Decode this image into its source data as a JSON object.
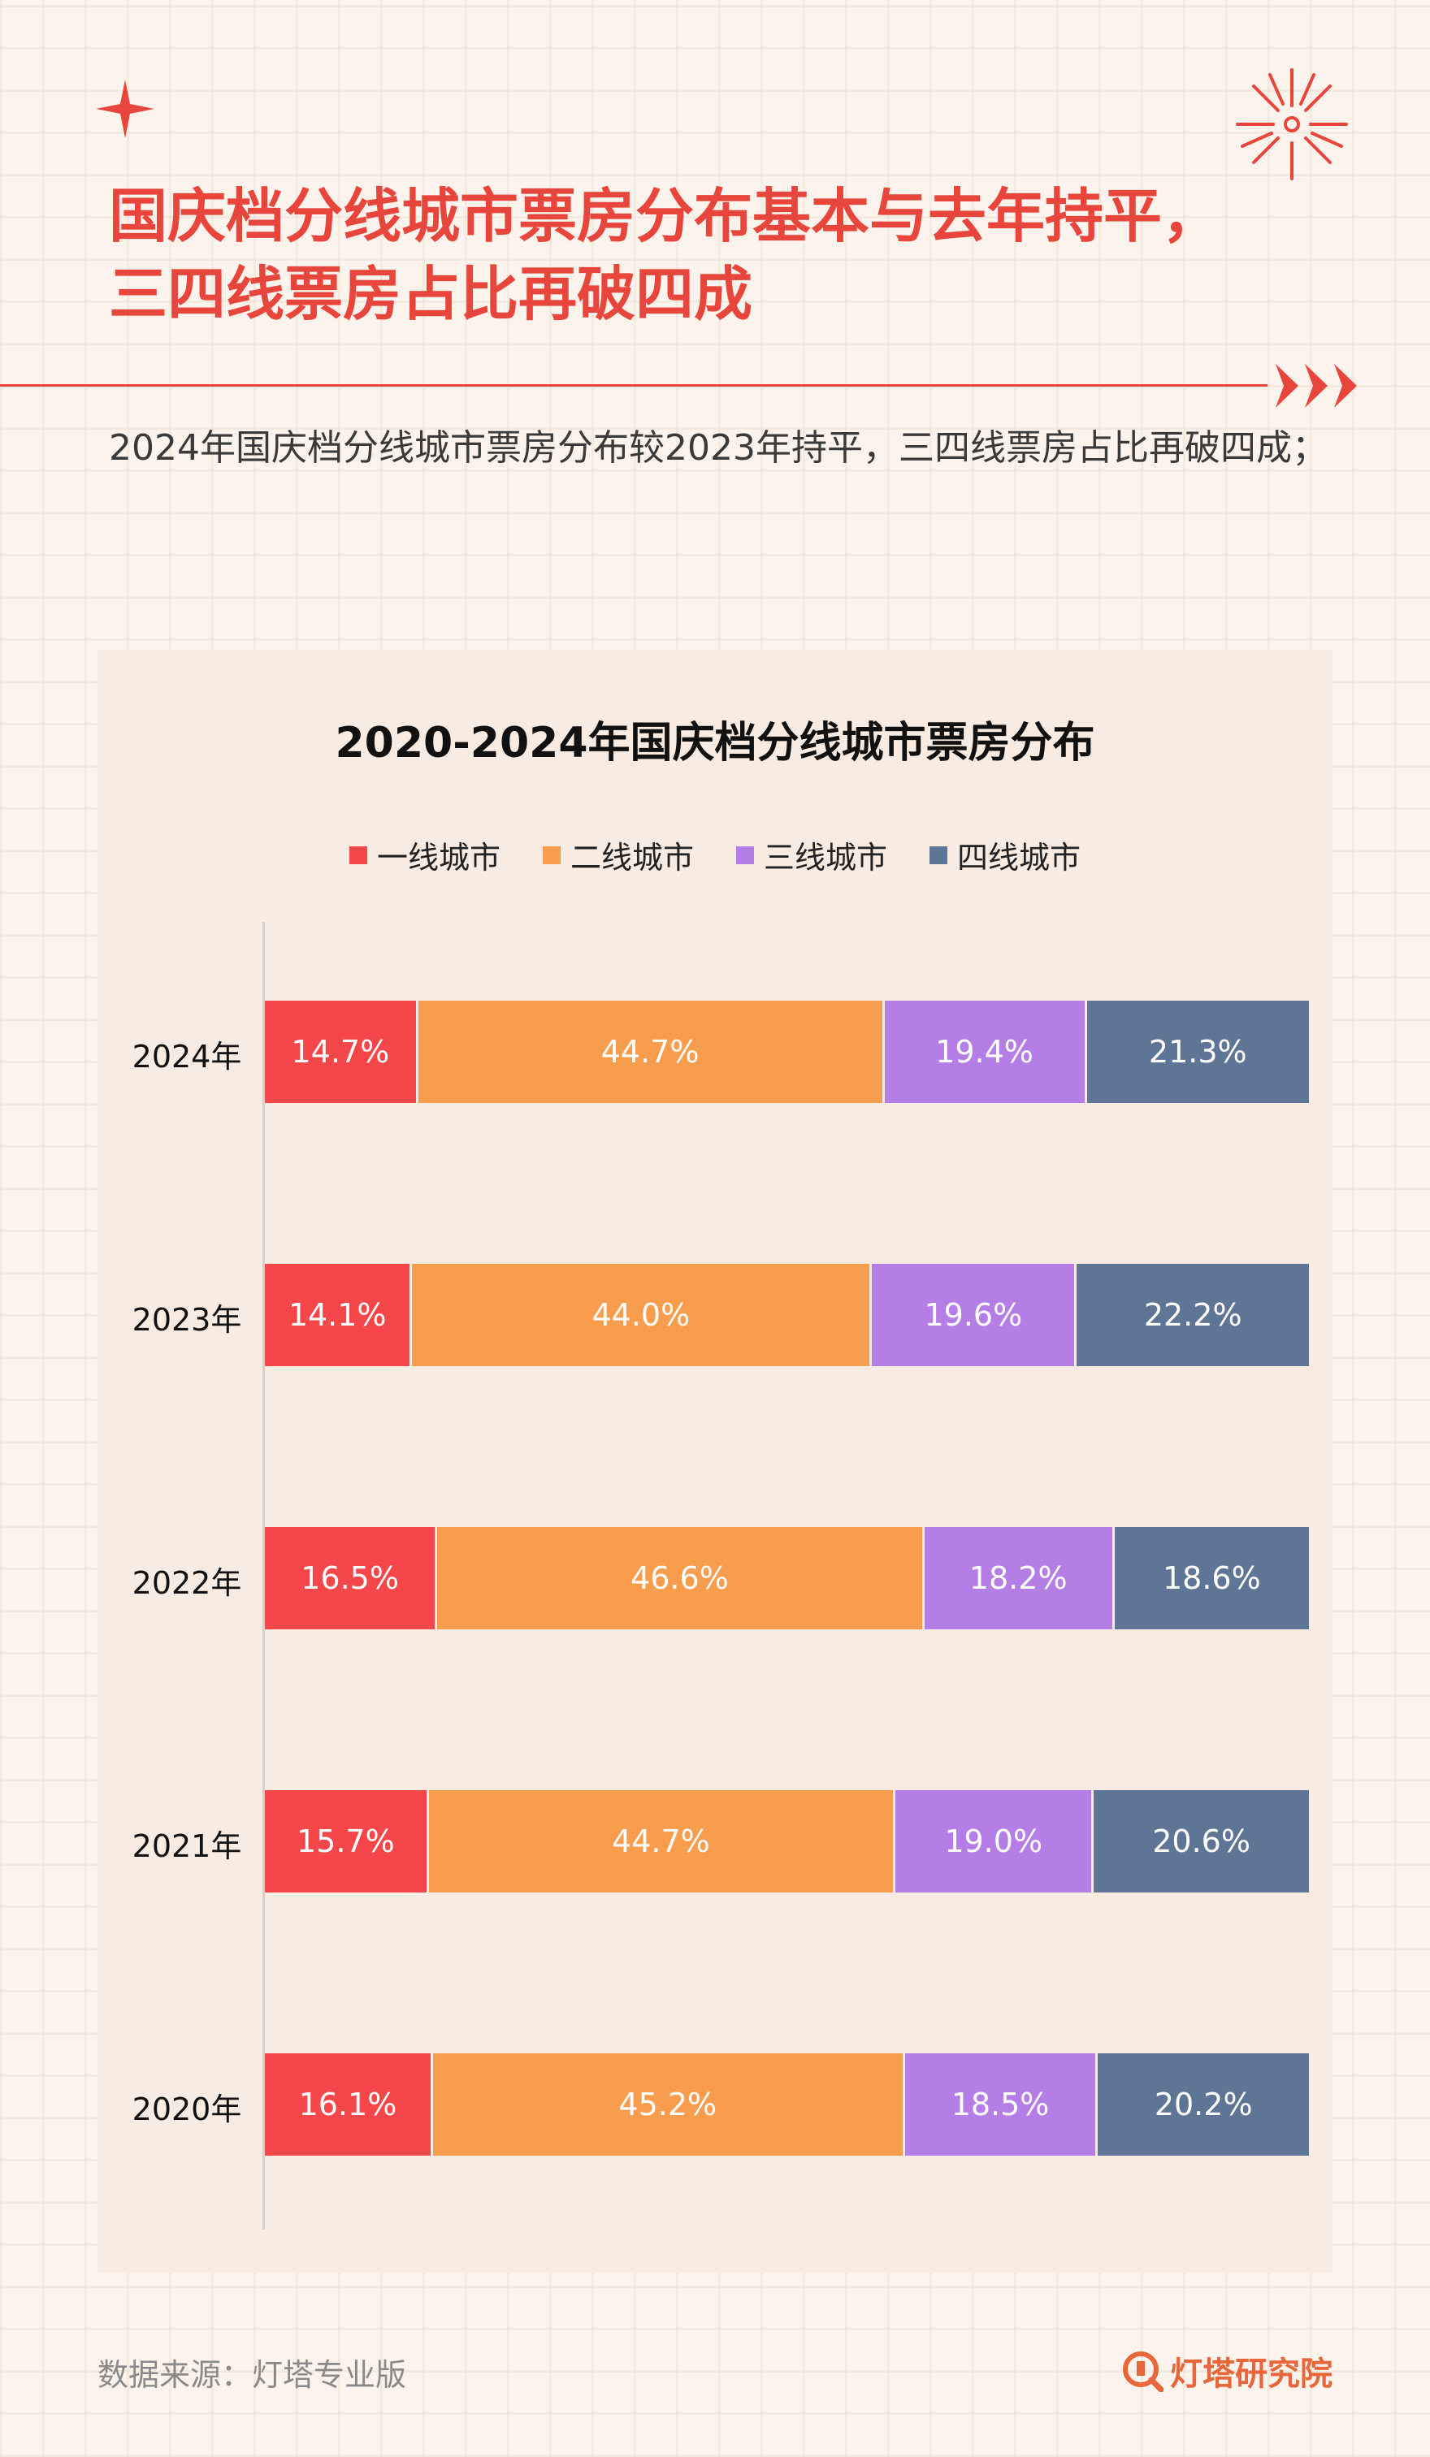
{
  "page": {
    "title_line1": "国庆档分线城市票房分布基本与去年持平，",
    "title_line2": "三四线票房占比再破四成",
    "subtitle": "2024年国庆档分线城市票房分布较2023年持平，三四线票房占比再破四成；",
    "source": "数据来源：灯塔专业版",
    "brand": "灯塔研究院"
  },
  "colors": {
    "accent": "#e8453c",
    "tier1": "#f5474a",
    "tier2": "#f89d4e",
    "tier3": "#b57ee6",
    "tier4": "#5f7595"
  },
  "chart_data": {
    "type": "bar",
    "orientation": "horizontal",
    "stacked": true,
    "title": "2020-2024年国庆档分线城市票房分布",
    "legend_position": "top",
    "categories": [
      "2024年",
      "2023年",
      "2022年",
      "2021年",
      "2020年"
    ],
    "series": [
      {
        "name": "一线城市",
        "color": "#f5474a",
        "values": [
          14.7,
          14.1,
          16.5,
          15.7,
          16.1
        ],
        "labels": [
          "14.7%",
          "14.1%",
          "16.5%",
          "15.7%",
          "16.1%"
        ]
      },
      {
        "name": "二线城市",
        "color": "#f89d4e",
        "values": [
          44.7,
          44.0,
          46.6,
          44.7,
          45.2
        ],
        "labels": [
          "44.7%",
          "44.0%",
          "46.6%",
          "44.7%",
          "45.2%"
        ]
      },
      {
        "name": "三线城市",
        "color": "#b57ee6",
        "values": [
          19.4,
          19.6,
          18.2,
          19.0,
          18.5
        ],
        "labels": [
          "19.4%",
          "19.6%",
          "18.2%",
          "19.0%",
          "18.5%"
        ]
      },
      {
        "name": "四线城市",
        "color": "#5f7595",
        "values": [
          21.3,
          22.2,
          18.6,
          20.6,
          20.2
        ],
        "labels": [
          "21.3%",
          "22.2%",
          "18.6%",
          "20.6%",
          "20.2%"
        ]
      }
    ]
  }
}
